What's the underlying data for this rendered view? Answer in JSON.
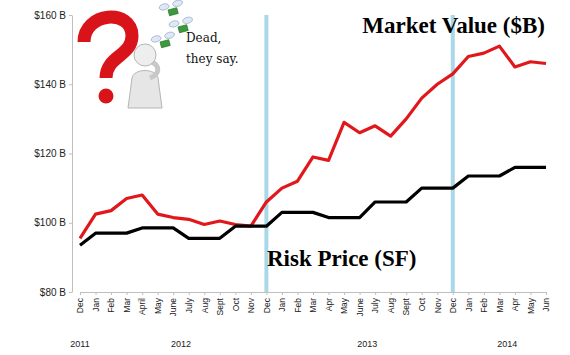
{
  "chart_data": {
    "type": "line",
    "categories": [
      "Dec",
      "Jan",
      "Feb",
      "Mar",
      "April",
      "May",
      "June",
      "July",
      "Aug",
      "Sept",
      "Oct",
      "Nov",
      "Dec",
      "Jan",
      "Feb",
      "Mar",
      "Apr",
      "May",
      "June",
      "July",
      "Aug",
      "Sept",
      "Oct",
      "Nov",
      "Dec",
      "Jan",
      "Feb",
      "Mar",
      "Apr",
      "May",
      "Jun"
    ],
    "years": [
      "2011",
      "2012",
      "2012",
      "2012",
      "2012",
      "2012",
      "2012",
      "2012",
      "2012",
      "2012",
      "2012",
      "2012",
      "2012",
      "2013",
      "2013",
      "2013",
      "2013",
      "2013",
      "2013",
      "2013",
      "2013",
      "2013",
      "2013",
      "2013",
      "2013",
      "2014",
      "2014",
      "2014",
      "2014",
      "2014",
      "2014"
    ],
    "series": [
      {
        "name": "Market Value ($B)",
        "color": "#e0181b",
        "values": [
          95.5,
          102.5,
          103.5,
          107,
          108,
          102.5,
          101.5,
          101,
          99.5,
          100.5,
          99.5,
          99,
          106,
          110,
          112,
          119,
          118,
          129,
          126,
          128,
          125,
          130,
          136,
          140,
          143,
          148,
          149,
          151,
          145,
          146.5,
          146
        ]
      },
      {
        "name": "Risk Price (SF)",
        "color": "#000000",
        "values": [
          93.5,
          97,
          97,
          97,
          98.5,
          98.5,
          98.5,
          95.5,
          95.5,
          95.5,
          99,
          99,
          99,
          103,
          103,
          103,
          101.5,
          101.5,
          101.5,
          106,
          106,
          106,
          110,
          110,
          110,
          113.5,
          113.5,
          113.5,
          116,
          116,
          116
        ]
      }
    ],
    "ylim": [
      80,
      160
    ],
    "yticks": [
      {
        "value": 80,
        "label": "$80 B"
      },
      {
        "value": 100,
        "label": "$100 B"
      },
      {
        "value": 120,
        "label": "$120 B"
      },
      {
        "value": 140,
        "label": "$140 B"
      },
      {
        "value": 160,
        "label": "$160 B"
      }
    ],
    "grid": false,
    "vertical_lines": [
      12,
      24
    ],
    "annotations": [
      "Dead,",
      "they say."
    ]
  }
}
